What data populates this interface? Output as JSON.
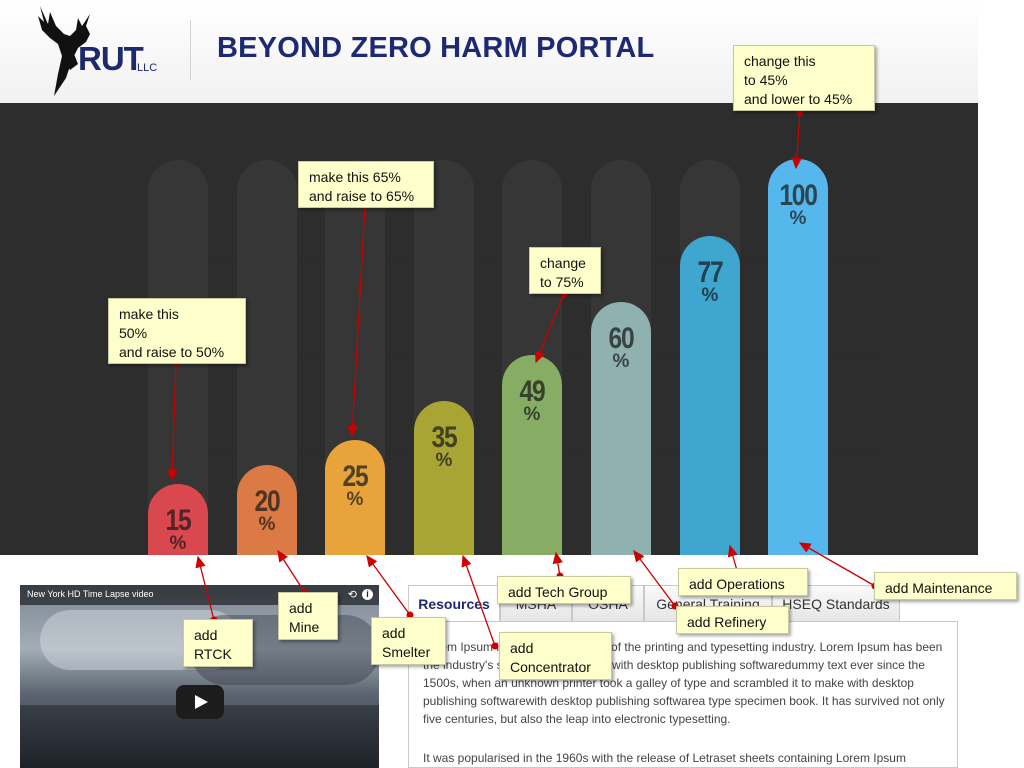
{
  "header": {
    "logo_text": "RUT",
    "logo_suffix": "LLC",
    "title": "BEYOND ZERO HARM PORTAL"
  },
  "chart_data": {
    "type": "bar",
    "bars": [
      {
        "value": "15",
        "unit": "%",
        "color": "#d9474f"
      },
      {
        "value": "20",
        "unit": "%",
        "color": "#db7a45"
      },
      {
        "value": "25",
        "unit": "%",
        "color": "#e8a43a"
      },
      {
        "value": "35",
        "unit": "%",
        "color": "#a9a534"
      },
      {
        "value": "49",
        "unit": "%",
        "color": "#86ad63"
      },
      {
        "value": "60",
        "unit": "%",
        "color": "#8fb1af"
      },
      {
        "value": "77",
        "unit": "%",
        "color": "#3fa6cf"
      },
      {
        "value": "100",
        "unit": "%",
        "color": "#56b7ec"
      }
    ],
    "values": [
      15,
      20,
      25,
      35,
      49,
      60,
      77,
      100
    ]
  },
  "video": {
    "title": "New York HD Time Lapse video",
    "share_icon": "share-icon",
    "info_icon": "info-icon",
    "info_glyph": "i"
  },
  "tabs": [
    {
      "label": "Resources"
    },
    {
      "label": "MSHA"
    },
    {
      "label": "OSHA"
    },
    {
      "label": "General Training"
    },
    {
      "label": "HSEQ Standards"
    }
  ],
  "content": {
    "para1": "Lorem Ipsum is simply dummy text of the printing and typesetting industry. Lorem Ipsum has been the industry's standard dummy text with desktop publishing softwaredummy text ever since the 1500s, when an unknown printer took a galley of type and scrambled it to make with desktop publishing softwarewith desktop publishing softwarea type specimen book. It has survived not only five centuries, but also the leap into electronic typesetting.",
    "para2": "It was popularised in the 1960s with the release of Letraset sheets containing Lorem Ipsum"
  },
  "annotations": [
    {
      "text": "change this\nto 45%\nand lower to 45%"
    },
    {
      "text": "make this 65%\nand raise to 65%"
    },
    {
      "text": "make this\n50%\nand raise to 50%"
    },
    {
      "text": "change\nto 75%"
    },
    {
      "text": "add Tech Group"
    },
    {
      "text": "add Operations"
    },
    {
      "text": "add Maintenance"
    },
    {
      "text": "add Refinery"
    },
    {
      "text": "add\nRTCK"
    },
    {
      "text": "add\nMine"
    },
    {
      "text": "add\nSmelter"
    },
    {
      "text": "add\nConcentrator"
    }
  ],
  "colors": {
    "title": "#1d2a72",
    "band": "#2d2d2d",
    "note_bg": "#ffffcc",
    "arrow": "#cc0000"
  }
}
